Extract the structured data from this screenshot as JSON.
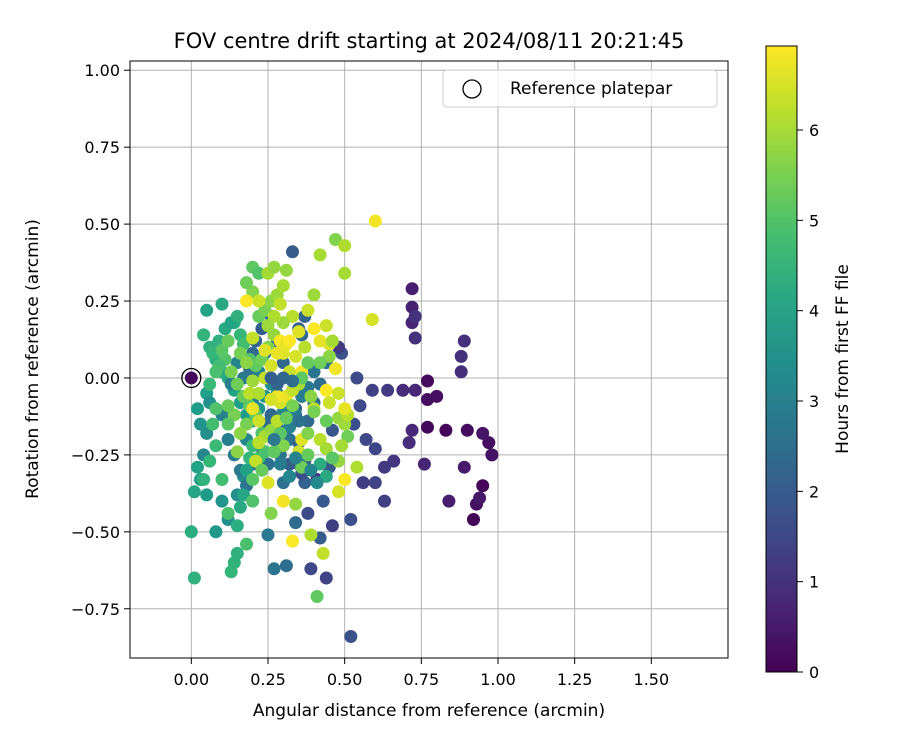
{
  "chart_data": {
    "type": "scatter",
    "title": "FOV centre drift starting at 2024/08/11 20:21:45",
    "xlabel": "Angular distance from reference (arcmin)",
    "ylabel": "Rotation from reference (arcmin)",
    "xlim": [
      -0.2,
      1.75
    ],
    "ylim": [
      -0.91,
      1.03
    ],
    "xticks": [
      0.0,
      0.25,
      0.5,
      0.75,
      1.0,
      1.25,
      1.5
    ],
    "xtick_labels": [
      "0.00",
      "0.25",
      "0.50",
      "0.75",
      "1.00",
      "1.25",
      "1.50"
    ],
    "yticks": [
      -0.75,
      -0.5,
      -0.25,
      0.0,
      0.25,
      0.5,
      0.75,
      1.0
    ],
    "ytick_labels": [
      "−0.75",
      "−0.50",
      "−0.25",
      "0.00",
      "0.25",
      "0.50",
      "0.75",
      "1.00"
    ],
    "grid": true,
    "legend": {
      "position": "top-right",
      "entries": [
        "Reference platepar"
      ]
    },
    "reference_point": {
      "x": 0.0,
      "y": 0.0
    },
    "colorbar": {
      "label": "Hours from first FF file",
      "colormap": "viridis",
      "range": [
        0,
        6.93
      ],
      "ticks": [
        0,
        1,
        2,
        3,
        4,
        5,
        6
      ],
      "tick_labels": [
        "0",
        "1",
        "2",
        "3",
        "4",
        "5",
        "6"
      ]
    },
    "points": [
      [
        0.92,
        -0.46,
        0.05
      ],
      [
        0.77,
        -0.16,
        0.15
      ],
      [
        0.83,
        -0.17,
        0.1
      ],
      [
        0.9,
        -0.17,
        0.2
      ],
      [
        0.93,
        -0.41,
        0.25
      ],
      [
        0.95,
        -0.35,
        0.1
      ],
      [
        0.97,
        -0.21,
        0.3
      ],
      [
        0.98,
        -0.25,
        0.35
      ],
      [
        0.95,
        -0.18,
        0.4
      ],
      [
        0.94,
        -0.39,
        0.45
      ],
      [
        0.89,
        -0.29,
        0.5
      ],
      [
        0.84,
        -0.4,
        0.55
      ],
      [
        0.8,
        -0.06,
        0.3
      ],
      [
        0.77,
        -0.01,
        0.2
      ],
      [
        0.77,
        -0.07,
        0.25
      ],
      [
        0.76,
        -0.28,
        0.7
      ],
      [
        0.72,
        -0.17,
        0.8
      ],
      [
        0.71,
        -0.21,
        0.9
      ],
      [
        0.69,
        -0.04,
        0.85
      ],
      [
        0.73,
        -0.04,
        0.75
      ],
      [
        0.72,
        0.29,
        0.6
      ],
      [
        0.72,
        0.23,
        0.65
      ],
      [
        0.72,
        0.18,
        0.7
      ],
      [
        0.73,
        0.13,
        0.95
      ],
      [
        0.73,
        0.2,
        1.0
      ],
      [
        0.88,
        0.02,
        0.9
      ],
      [
        0.88,
        0.07,
        1.0
      ],
      [
        0.89,
        0.12,
        0.95
      ],
      [
        0.66,
        -0.27,
        1.1
      ],
      [
        0.63,
        -0.29,
        1.15
      ],
      [
        0.64,
        -0.04,
        1.2
      ],
      [
        0.63,
        -0.4,
        1.3
      ],
      [
        0.6,
        -0.34,
        1.4
      ],
      [
        0.6,
        -0.23,
        1.45
      ],
      [
        0.57,
        -0.2,
        1.5
      ],
      [
        0.59,
        -0.04,
        1.35
      ],
      [
        0.55,
        -0.09,
        1.55
      ],
      [
        0.56,
        -0.34,
        1.25
      ],
      [
        0.54,
        0.0,
        1.6
      ],
      [
        0.53,
        -0.15,
        1.65
      ],
      [
        0.52,
        -0.46,
        1.7
      ],
      [
        0.52,
        -0.84,
        1.75
      ],
      [
        0.49,
        0.08,
        1.8
      ],
      [
        0.48,
        0.1,
        1.2
      ],
      [
        0.46,
        -0.17,
        1.85
      ],
      [
        0.46,
        -0.48,
        1.3
      ],
      [
        0.45,
        -0.29,
        1.9
      ],
      [
        0.44,
        -0.65,
        1.4
      ],
      [
        0.43,
        -0.4,
        1.95
      ],
      [
        0.42,
        -0.52,
        2.0
      ],
      [
        0.41,
        -0.33,
        1.1
      ],
      [
        0.39,
        -0.62,
        1.5
      ],
      [
        0.38,
        -0.44,
        1.6
      ],
      [
        0.37,
        -0.27,
        2.1
      ],
      [
        0.37,
        -0.34,
        2.2
      ],
      [
        0.36,
        -0.31,
        1.7
      ],
      [
        0.35,
        -0.28,
        2.3
      ],
      [
        0.34,
        -0.1,
        2.4
      ],
      [
        0.33,
        0.41,
        2.0
      ],
      [
        0.35,
        0.16,
        2.1
      ],
      [
        0.37,
        0.2,
        2.2
      ],
      [
        0.36,
        0.14,
        2.3
      ],
      [
        0.34,
        -0.47,
        2.4
      ],
      [
        0.31,
        -0.61,
        2.5
      ],
      [
        0.3,
        -0.34,
        2.6
      ],
      [
        0.27,
        -0.62,
        2.7
      ],
      [
        0.25,
        -0.51,
        2.8
      ],
      [
        0.25,
        -0.28,
        2.5
      ],
      [
        0.29,
        -0.25,
        2.6
      ],
      [
        0.32,
        -0.2,
        2.7
      ],
      [
        0.31,
        -0.08,
        2.3
      ],
      [
        0.3,
        0.05,
        2.4
      ],
      [
        0.28,
        0.12,
        2.2
      ],
      [
        0.26,
        0.2,
        2.1
      ],
      [
        0.24,
        0.08,
        2.9
      ],
      [
        0.22,
        0.02,
        3.0
      ],
      [
        0.2,
        -0.08,
        3.1
      ],
      [
        0.18,
        -0.2,
        3.2
      ],
      [
        0.17,
        -0.32,
        3.3
      ],
      [
        0.15,
        -0.38,
        3.4
      ],
      [
        0.12,
        -0.46,
        3.5
      ],
      [
        0.1,
        -0.4,
        3.6
      ],
      [
        0.08,
        -0.5,
        3.7
      ],
      [
        0.05,
        -0.38,
        3.8
      ],
      [
        0.03,
        -0.33,
        3.9
      ],
      [
        0.02,
        -0.29,
        4.0
      ],
      [
        0.01,
        -0.37,
        4.1
      ],
      [
        0.04,
        -0.25,
        3.2
      ],
      [
        0.05,
        -0.18,
        3.4
      ],
      [
        0.03,
        -0.15,
        3.6
      ],
      [
        0.02,
        -0.1,
        3.8
      ],
      [
        0.05,
        -0.05,
        3.9
      ],
      [
        0.06,
        -0.08,
        3.5
      ],
      [
        0.08,
        -0.1,
        3.3
      ],
      [
        0.1,
        -0.12,
        3.1
      ],
      [
        0.12,
        -0.2,
        3.0
      ],
      [
        0.14,
        -0.25,
        2.9
      ],
      [
        0.16,
        -0.3,
        2.8
      ],
      [
        0.18,
        -0.35,
        2.7
      ],
      [
        0.2,
        -0.28,
        2.6
      ],
      [
        0.22,
        -0.22,
        2.5
      ],
      [
        0.24,
        -0.15,
        2.4
      ],
      [
        0.26,
        -0.12,
        2.3
      ],
      [
        0.28,
        -0.16,
        2.2
      ],
      [
        0.3,
        -0.22,
        2.1
      ],
      [
        0.32,
        -0.28,
        2.0
      ],
      [
        0.35,
        -0.21,
        2.2
      ],
      [
        0.38,
        -0.14,
        2.3
      ],
      [
        0.4,
        -0.08,
        2.4
      ],
      [
        0.42,
        -0.02,
        2.5
      ],
      [
        0.44,
        0.05,
        2.6
      ],
      [
        0.4,
        0.02,
        2.7
      ],
      [
        0.38,
        -0.03,
        2.8
      ],
      [
        0.36,
        -0.06,
        2.9
      ],
      [
        0.34,
        -0.12,
        3.0
      ],
      [
        0.32,
        -0.16,
        3.1
      ],
      [
        0.3,
        -0.11,
        3.2
      ],
      [
        0.28,
        -0.05,
        3.3
      ],
      [
        0.26,
        -0.02,
        3.4
      ],
      [
        0.24,
        -0.06,
        3.5
      ],
      [
        0.22,
        -0.1,
        3.6
      ],
      [
        0.2,
        -0.14,
        3.7
      ],
      [
        0.18,
        -0.12,
        3.8
      ],
      [
        0.16,
        -0.08,
        3.9
      ],
      [
        0.14,
        -0.04,
        4.0
      ],
      [
        0.12,
        0.0,
        4.1
      ],
      [
        0.1,
        0.02,
        4.2
      ],
      [
        0.08,
        0.06,
        4.3
      ],
      [
        0.06,
        0.1,
        4.4
      ],
      [
        0.04,
        0.14,
        4.5
      ],
      [
        0.05,
        0.22,
        4.0
      ],
      [
        0.1,
        0.24,
        4.2
      ],
      [
        0.14,
        0.18,
        4.4
      ],
      [
        0.15,
        0.05,
        3.2
      ],
      [
        0.13,
        -0.02,
        3.0
      ],
      [
        0.17,
        0.0,
        2.8
      ],
      [
        0.19,
        0.03,
        2.6
      ],
      [
        0.2,
        0.08,
        2.4
      ],
      [
        0.21,
        0.12,
        2.2
      ],
      [
        0.23,
        0.16,
        2.0
      ],
      [
        0.0,
        -0.5,
        4.3
      ],
      [
        0.01,
        -0.65,
        4.4
      ],
      [
        0.04,
        -0.33,
        4.5
      ],
      [
        0.06,
        -0.27,
        4.6
      ],
      [
        0.08,
        -0.22,
        4.7
      ],
      [
        0.1,
        -0.33,
        4.8
      ],
      [
        0.12,
        -0.44,
        4.9
      ],
      [
        0.13,
        -0.63,
        4.6
      ],
      [
        0.14,
        -0.6,
        4.5
      ],
      [
        0.15,
        -0.57,
        4.4
      ],
      [
        0.15,
        -0.48,
        4.3
      ],
      [
        0.16,
        -0.42,
        4.2
      ],
      [
        0.17,
        -0.38,
        4.1
      ],
      [
        0.18,
        -0.3,
        4.0
      ],
      [
        0.19,
        -0.26,
        4.6
      ],
      [
        0.2,
        -0.22,
        4.7
      ],
      [
        0.22,
        -0.26,
        4.8
      ],
      [
        0.24,
        -0.24,
        4.9
      ],
      [
        0.23,
        -0.18,
        5.0
      ],
      [
        0.21,
        -0.12,
        5.1
      ],
      [
        0.19,
        -0.09,
        5.2
      ],
      [
        0.17,
        -0.06,
        5.3
      ],
      [
        0.15,
        -0.02,
        5.4
      ],
      [
        0.13,
        0.02,
        5.5
      ],
      [
        0.11,
        0.06,
        5.0
      ],
      [
        0.09,
        0.04,
        4.8
      ],
      [
        0.07,
        0.08,
        4.6
      ],
      [
        0.09,
        0.12,
        4.4
      ],
      [
        0.11,
        0.16,
        4.2
      ],
      [
        0.13,
        0.18,
        4.0
      ],
      [
        0.15,
        0.2,
        4.4
      ],
      [
        0.16,
        0.14,
        4.6
      ],
      [
        0.17,
        0.11,
        4.8
      ],
      [
        0.19,
        0.06,
        5.0
      ],
      [
        0.21,
        0.04,
        5.2
      ],
      [
        0.23,
        0.06,
        5.4
      ],
      [
        0.25,
        0.1,
        5.6
      ],
      [
        0.27,
        0.14,
        5.8
      ],
      [
        0.22,
        0.2,
        5.3
      ],
      [
        0.24,
        0.22,
        5.5
      ],
      [
        0.26,
        0.25,
        5.7
      ],
      [
        0.28,
        0.27,
        5.9
      ],
      [
        0.3,
        0.3,
        6.0
      ],
      [
        0.31,
        0.35,
        5.8
      ],
      [
        0.2,
        0.28,
        5.6
      ],
      [
        0.18,
        0.31,
        5.4
      ],
      [
        0.2,
        0.36,
        5.2
      ],
      [
        0.22,
        0.34,
        5.0
      ],
      [
        0.25,
        0.34,
        6.0
      ],
      [
        0.27,
        0.36,
        5.8
      ],
      [
        0.4,
        0.27,
        5.9
      ],
      [
        0.42,
        0.4,
        6.0
      ],
      [
        0.47,
        0.45,
        5.6
      ],
      [
        0.5,
        0.43,
        6.1
      ],
      [
        0.5,
        0.34,
        6.0
      ],
      [
        0.6,
        0.51,
        6.8
      ],
      [
        0.59,
        0.19,
        6.5
      ],
      [
        0.44,
        0.17,
        6.4
      ],
      [
        0.4,
        0.16,
        6.9
      ],
      [
        0.42,
        0.12,
        6.7
      ],
      [
        0.45,
        0.11,
        6.6
      ],
      [
        0.47,
        0.03,
        6.8
      ],
      [
        0.44,
        -0.04,
        6.9
      ],
      [
        0.45,
        -0.08,
        6.4
      ],
      [
        0.48,
        -0.13,
        5.8
      ],
      [
        0.5,
        -0.15,
        5.9
      ],
      [
        0.51,
        -0.19,
        5.4
      ],
      [
        0.51,
        -0.12,
        6.2
      ],
      [
        0.54,
        -0.29,
        6.1
      ],
      [
        0.49,
        -0.22,
        6.0
      ],
      [
        0.48,
        -0.27,
        5.8
      ],
      [
        0.5,
        -0.33,
        6.9
      ],
      [
        0.48,
        -0.37,
        6.5
      ],
      [
        0.43,
        -0.57,
        6.3
      ],
      [
        0.39,
        -0.51,
        6.1
      ],
      [
        0.41,
        -0.71,
        5.2
      ],
      [
        0.34,
        -0.41,
        5.8
      ],
      [
        0.33,
        -0.53,
        6.9
      ],
      [
        0.26,
        -0.44,
        5.6
      ],
      [
        0.25,
        -0.34,
        6.6
      ],
      [
        0.2,
        -0.4,
        5.0
      ],
      [
        0.18,
        -0.54,
        4.9
      ],
      [
        0.15,
        -0.24,
        5.7
      ],
      [
        0.2,
        -0.1,
        6.7
      ],
      [
        0.19,
        -0.05,
        6.2
      ],
      [
        0.22,
        -0.14,
        6.4
      ],
      [
        0.24,
        -0.19,
        6.0
      ],
      [
        0.26,
        -0.17,
        5.8
      ],
      [
        0.28,
        -0.14,
        6.2
      ],
      [
        0.29,
        -0.08,
        6.5
      ],
      [
        0.31,
        -0.06,
        6.7
      ],
      [
        0.33,
        -0.04,
        6.3
      ],
      [
        0.35,
        -0.02,
        6.1
      ],
      [
        0.36,
        0.02,
        6.8
      ],
      [
        0.32,
        0.02,
        6.4
      ],
      [
        0.3,
        0.08,
        6.6
      ],
      [
        0.29,
        0.12,
        6.9
      ],
      [
        0.31,
        0.11,
        6.7
      ],
      [
        0.34,
        0.07,
        6.5
      ],
      [
        0.33,
        0.2,
        6.2
      ],
      [
        0.29,
        0.24,
        6.3
      ],
      [
        0.3,
        0.18,
        5.9
      ],
      [
        0.27,
        0.2,
        6.1
      ],
      [
        0.25,
        0.17,
        5.9
      ],
      [
        0.22,
        0.25,
        6.4
      ],
      [
        0.18,
        0.25,
        6.9
      ],
      [
        0.24,
        0.09,
        6.6
      ],
      [
        0.2,
        0.13,
        6.3
      ],
      [
        0.38,
        0.22,
        6.4
      ],
      [
        0.37,
        0.1,
        6.2
      ],
      [
        0.4,
        -0.1,
        6.3
      ],
      [
        0.42,
        -0.2,
        6.2
      ],
      [
        0.44,
        -0.23,
        6.0
      ],
      [
        0.36,
        -0.2,
        6.6
      ],
      [
        0.35,
        -0.24,
        6.4
      ],
      [
        0.28,
        -0.06,
        6.8
      ],
      [
        0.26,
        -0.07,
        6.5
      ],
      [
        0.22,
        -0.21,
        6.2
      ],
      [
        0.21,
        -0.27,
        6.3
      ],
      [
        0.38,
        -0.18,
        5.6
      ],
      [
        0.39,
        -0.06,
        5.7
      ],
      [
        0.4,
        -0.11,
        5.5
      ],
      [
        0.44,
        -0.14,
        5.3
      ],
      [
        0.46,
        -0.26,
        5.1
      ],
      [
        0.38,
        -0.25,
        5.3
      ],
      [
        0.36,
        -0.29,
        5.4
      ],
      [
        0.3,
        -0.22,
        5.6
      ],
      [
        0.3,
        -0.4,
        6.8
      ],
      [
        0.48,
        -0.05,
        6.4
      ],
      [
        0.5,
        -0.1,
        6.7
      ],
      [
        0.46,
        0.12,
        6.0
      ],
      [
        0.45,
        0.07,
        5.7
      ],
      [
        0.42,
        0.05,
        5.4
      ],
      [
        0.38,
        0.05,
        5.3
      ],
      [
        0.36,
        0.0,
        5.2
      ],
      [
        0.33,
        -0.09,
        5.5
      ],
      [
        0.31,
        -0.13,
        5.3
      ],
      [
        0.29,
        -0.18,
        5.1
      ],
      [
        0.27,
        -0.24,
        5.2
      ],
      [
        0.23,
        -0.3,
        5.3
      ],
      [
        0.2,
        -0.33,
        5.1
      ],
      [
        0.18,
        -0.15,
        5.5
      ],
      [
        0.16,
        -0.18,
        5.7
      ],
      [
        0.14,
        -0.12,
        5.5
      ],
      [
        0.12,
        -0.09,
        5.3
      ],
      [
        0.12,
        -0.15,
        5.1
      ],
      [
        0.08,
        -0.1,
        5.0
      ],
      [
        0.07,
        -0.15,
        4.8
      ],
      [
        0.06,
        -0.02,
        4.7
      ],
      [
        0.08,
        0.02,
        4.9
      ],
      [
        0.1,
        0.09,
        5.1
      ],
      [
        0.12,
        0.12,
        5.3
      ],
      [
        0.16,
        0.08,
        5.5
      ],
      [
        0.18,
        0.05,
        5.7
      ],
      [
        0.2,
        -0.01,
        5.9
      ],
      [
        0.22,
        -0.05,
        6.1
      ],
      [
        0.24,
        0.0,
        6.3
      ],
      [
        0.26,
        0.04,
        6.5
      ],
      [
        0.28,
        0.08,
        6.7
      ],
      [
        0.32,
        0.12,
        6.9
      ],
      [
        0.35,
        0.15,
        6.6
      ],
      [
        0.42,
        -0.28,
        4.3
      ],
      [
        0.44,
        -0.32,
        4.2
      ],
      [
        0.41,
        -0.34,
        3.3
      ],
      [
        0.39,
        -0.3,
        3.2
      ],
      [
        0.34,
        -0.26,
        3.1
      ],
      [
        0.32,
        -0.32,
        3.2
      ],
      [
        0.29,
        -0.28,
        2.9
      ],
      [
        0.27,
        -0.2,
        2.8
      ],
      [
        0.35,
        -0.14,
        2.6
      ],
      [
        0.33,
        -0.01,
        2.5
      ],
      [
        0.3,
        0.0,
        2.3
      ],
      [
        0.28,
        -0.02,
        2.2
      ],
      [
        0.26,
        0.0,
        2.1
      ]
    ]
  }
}
